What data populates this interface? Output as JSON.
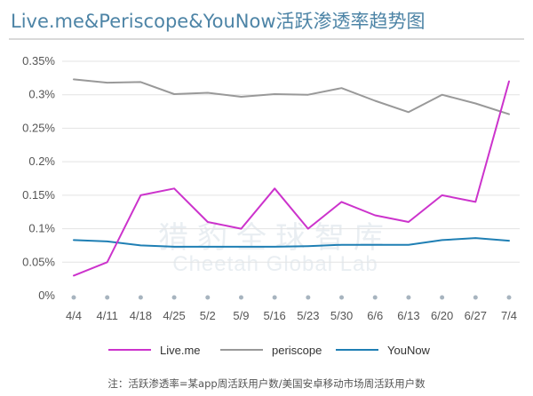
{
  "title": "Live.me&Periscope&YouNow活跃渗透率趋势图",
  "note": "注：活跃渗透率=某app周活跃用户数/美国安卓移动市场周活跃用户数",
  "watermark": {
    "line1": "猎豹全球智库",
    "line2": "Cheetah Global Lab"
  },
  "chart_data": {
    "type": "line",
    "title": "Live.me&Periscope&YouNow活跃渗透率趋势图",
    "xlabel": "",
    "ylabel": "",
    "categories": [
      "4/4",
      "4/11",
      "4/18",
      "4/25",
      "5/2",
      "5/9",
      "5/16",
      "5/23",
      "5/30",
      "6/6",
      "6/13",
      "6/20",
      "6/27",
      "7/4"
    ],
    "y_ticks": [
      "0%",
      "0.05%",
      "0.1%",
      "0.15%",
      "0.2%",
      "0.25%",
      "0.3%",
      "0.35%"
    ],
    "ylim": [
      0,
      0.35
    ],
    "grid": "horizontal",
    "legend_position": "bottom",
    "series": [
      {
        "name": "Live.me",
        "color": "#cc33cc",
        "values": [
          0.03,
          0.05,
          0.15,
          0.16,
          0.11,
          0.1,
          0.16,
          0.1,
          0.14,
          0.12,
          0.11,
          0.15,
          0.14,
          0.32
        ]
      },
      {
        "name": "periscope",
        "color": "#999999",
        "values": [
          0.323,
          0.318,
          0.319,
          0.301,
          0.303,
          0.297,
          0.301,
          0.3,
          0.31,
          0.291,
          0.274,
          0.3,
          0.287,
          0.271
        ]
      },
      {
        "name": "YouNow",
        "color": "#1f7fb4",
        "values": [
          0.083,
          0.081,
          0.075,
          0.073,
          0.073,
          0.073,
          0.073,
          0.074,
          0.076,
          0.076,
          0.076,
          0.083,
          0.086,
          0.082
        ]
      }
    ]
  }
}
